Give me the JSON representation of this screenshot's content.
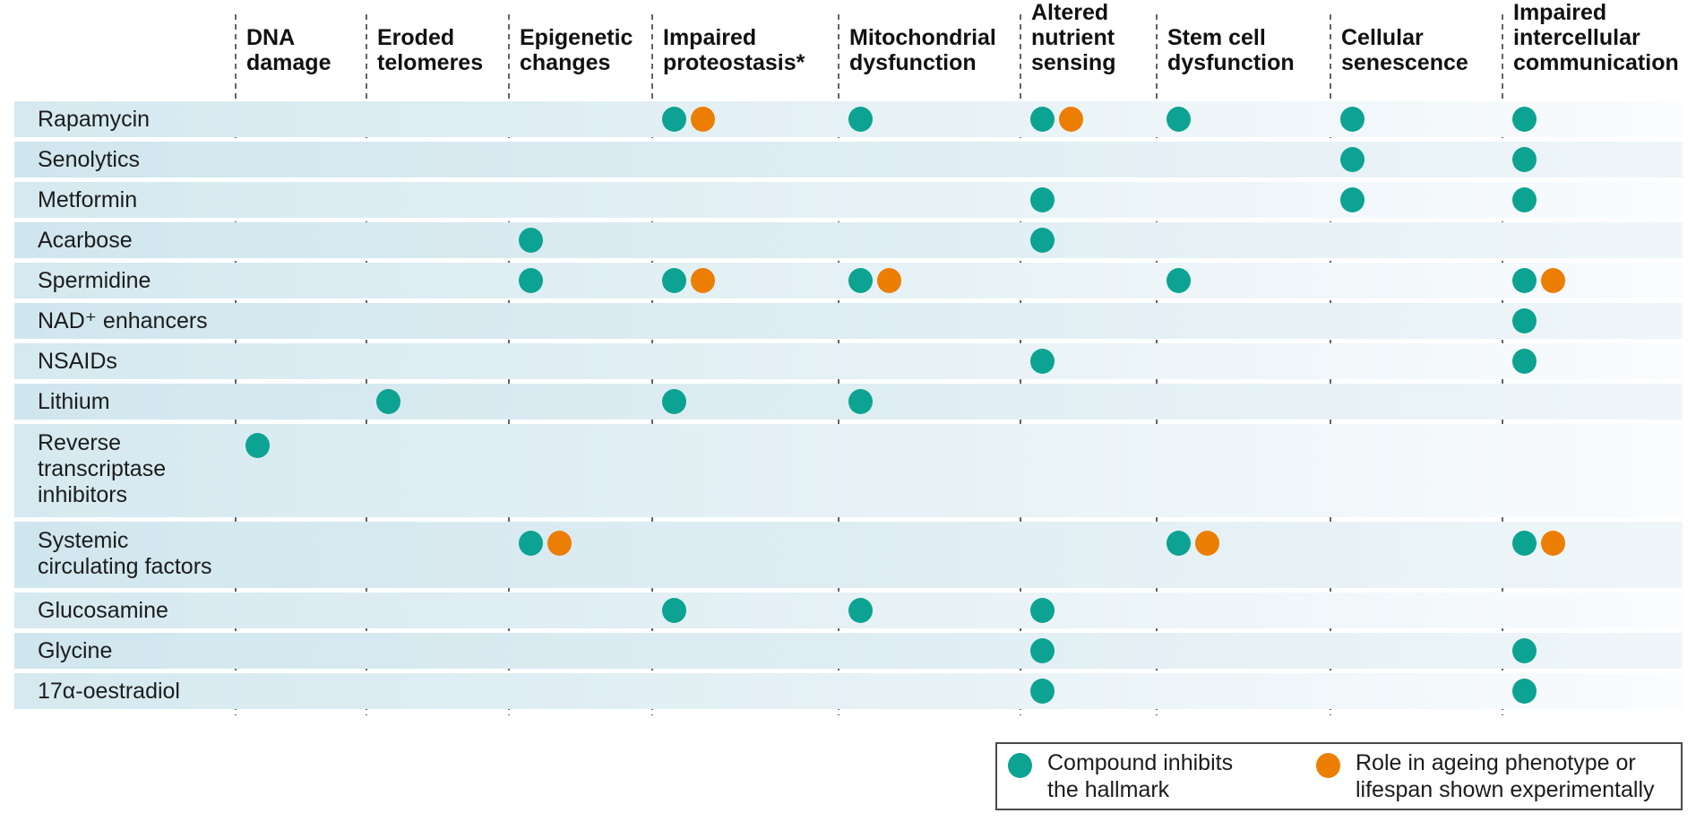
{
  "chart_data": {
    "type": "table",
    "title": "",
    "columns": [
      "DNA damage",
      "Eroded telomeres",
      "Epigenetic changes",
      "Impaired proteostasis*",
      "Mitochondrial dysfunction",
      "Altered nutrient sensing",
      "Stem cell dysfunction",
      "Cellular senescence",
      "Impaired intercellular communication"
    ],
    "rows": [
      {
        "label": "Rapamycin",
        "marks": [
          {
            "column": "Impaired proteostasis*",
            "dots": [
              "inhibits",
              "experimental"
            ]
          },
          {
            "column": "Mitochondrial dysfunction",
            "dots": [
              "inhibits"
            ]
          },
          {
            "column": "Altered nutrient sensing",
            "dots": [
              "inhibits",
              "experimental"
            ]
          },
          {
            "column": "Stem cell dysfunction",
            "dots": [
              "inhibits"
            ]
          },
          {
            "column": "Cellular senescence",
            "dots": [
              "inhibits"
            ]
          },
          {
            "column": "Impaired intercellular communication",
            "dots": [
              "inhibits"
            ]
          }
        ]
      },
      {
        "label": "Senolytics",
        "marks": [
          {
            "column": "Cellular senescence",
            "dots": [
              "inhibits"
            ]
          },
          {
            "column": "Impaired intercellular communication",
            "dots": [
              "inhibits"
            ]
          }
        ]
      },
      {
        "label": "Metformin",
        "marks": [
          {
            "column": "Altered nutrient sensing",
            "dots": [
              "inhibits"
            ]
          },
          {
            "column": "Cellular senescence",
            "dots": [
              "inhibits"
            ]
          },
          {
            "column": "Impaired intercellular communication",
            "dots": [
              "inhibits"
            ]
          }
        ]
      },
      {
        "label": "Acarbose",
        "marks": [
          {
            "column": "Epigenetic changes",
            "dots": [
              "inhibits"
            ]
          },
          {
            "column": "Altered nutrient sensing",
            "dots": [
              "inhibits"
            ]
          }
        ]
      },
      {
        "label": "Spermidine",
        "marks": [
          {
            "column": "Epigenetic changes",
            "dots": [
              "inhibits"
            ]
          },
          {
            "column": "Impaired proteostasis*",
            "dots": [
              "inhibits",
              "experimental"
            ]
          },
          {
            "column": "Mitochondrial dysfunction",
            "dots": [
              "inhibits",
              "experimental"
            ]
          },
          {
            "column": "Stem cell dysfunction",
            "dots": [
              "inhibits"
            ]
          },
          {
            "column": "Impaired intercellular communication",
            "dots": [
              "inhibits",
              "experimental"
            ]
          }
        ]
      },
      {
        "label": "NAD⁺ enhancers",
        "marks": [
          {
            "column": "Impaired intercellular communication",
            "dots": [
              "inhibits"
            ]
          }
        ]
      },
      {
        "label": "NSAIDs",
        "marks": [
          {
            "column": "Altered nutrient sensing",
            "dots": [
              "inhibits"
            ]
          },
          {
            "column": "Impaired intercellular communication",
            "dots": [
              "inhibits"
            ]
          }
        ]
      },
      {
        "label": "Lithium",
        "marks": [
          {
            "column": "Eroded telomeres",
            "dots": [
              "inhibits"
            ]
          },
          {
            "column": "Impaired proteostasis*",
            "dots": [
              "inhibits"
            ]
          },
          {
            "column": "Mitochondrial dysfunction",
            "dots": [
              "inhibits"
            ]
          }
        ]
      },
      {
        "label": "Reverse transcriptase inhibitors",
        "marks": [
          {
            "column": "DNA damage",
            "dots": [
              "inhibits"
            ]
          }
        ]
      },
      {
        "label": "Systemic circulating factors",
        "marks": [
          {
            "column": "Epigenetic changes",
            "dots": [
              "inhibits",
              "experimental"
            ]
          },
          {
            "column": "Stem cell dysfunction",
            "dots": [
              "inhibits",
              "experimental"
            ]
          },
          {
            "column": "Impaired intercellular communication",
            "dots": [
              "inhibits",
              "experimental"
            ]
          }
        ]
      },
      {
        "label": "Glucosamine",
        "marks": [
          {
            "column": "Impaired proteostasis*",
            "dots": [
              "inhibits"
            ]
          },
          {
            "column": "Mitochondrial dysfunction",
            "dots": [
              "inhibits"
            ]
          },
          {
            "column": "Altered nutrient sensing",
            "dots": [
              "inhibits"
            ]
          }
        ]
      },
      {
        "label": "Glycine",
        "marks": [
          {
            "column": "Altered nutrient sensing",
            "dots": [
              "inhibits"
            ]
          },
          {
            "column": "Impaired intercellular communication",
            "dots": [
              "inhibits"
            ]
          }
        ]
      },
      {
        "label": "17α-oestradiol",
        "marks": [
          {
            "column": "Altered nutrient sensing",
            "dots": [
              "inhibits"
            ]
          },
          {
            "column": "Impaired intercellular communication",
            "dots": [
              "inhibits"
            ]
          }
        ]
      }
    ],
    "legend": [
      {
        "key": "inhibits",
        "color": "#0ca392",
        "label": "Compound inhibits\nthe hallmark"
      },
      {
        "key": "experimental",
        "color": "#ec7e04",
        "label": "Role in ageing phenotype or\nlifespan shown experimentally"
      }
    ],
    "dot_colors": {
      "inhibits": "#0ca392",
      "experimental": "#ec7e04"
    },
    "layout_hints": {
      "grid": "dashed-vertical-separators",
      "legend_position": "bottom-right"
    }
  }
}
